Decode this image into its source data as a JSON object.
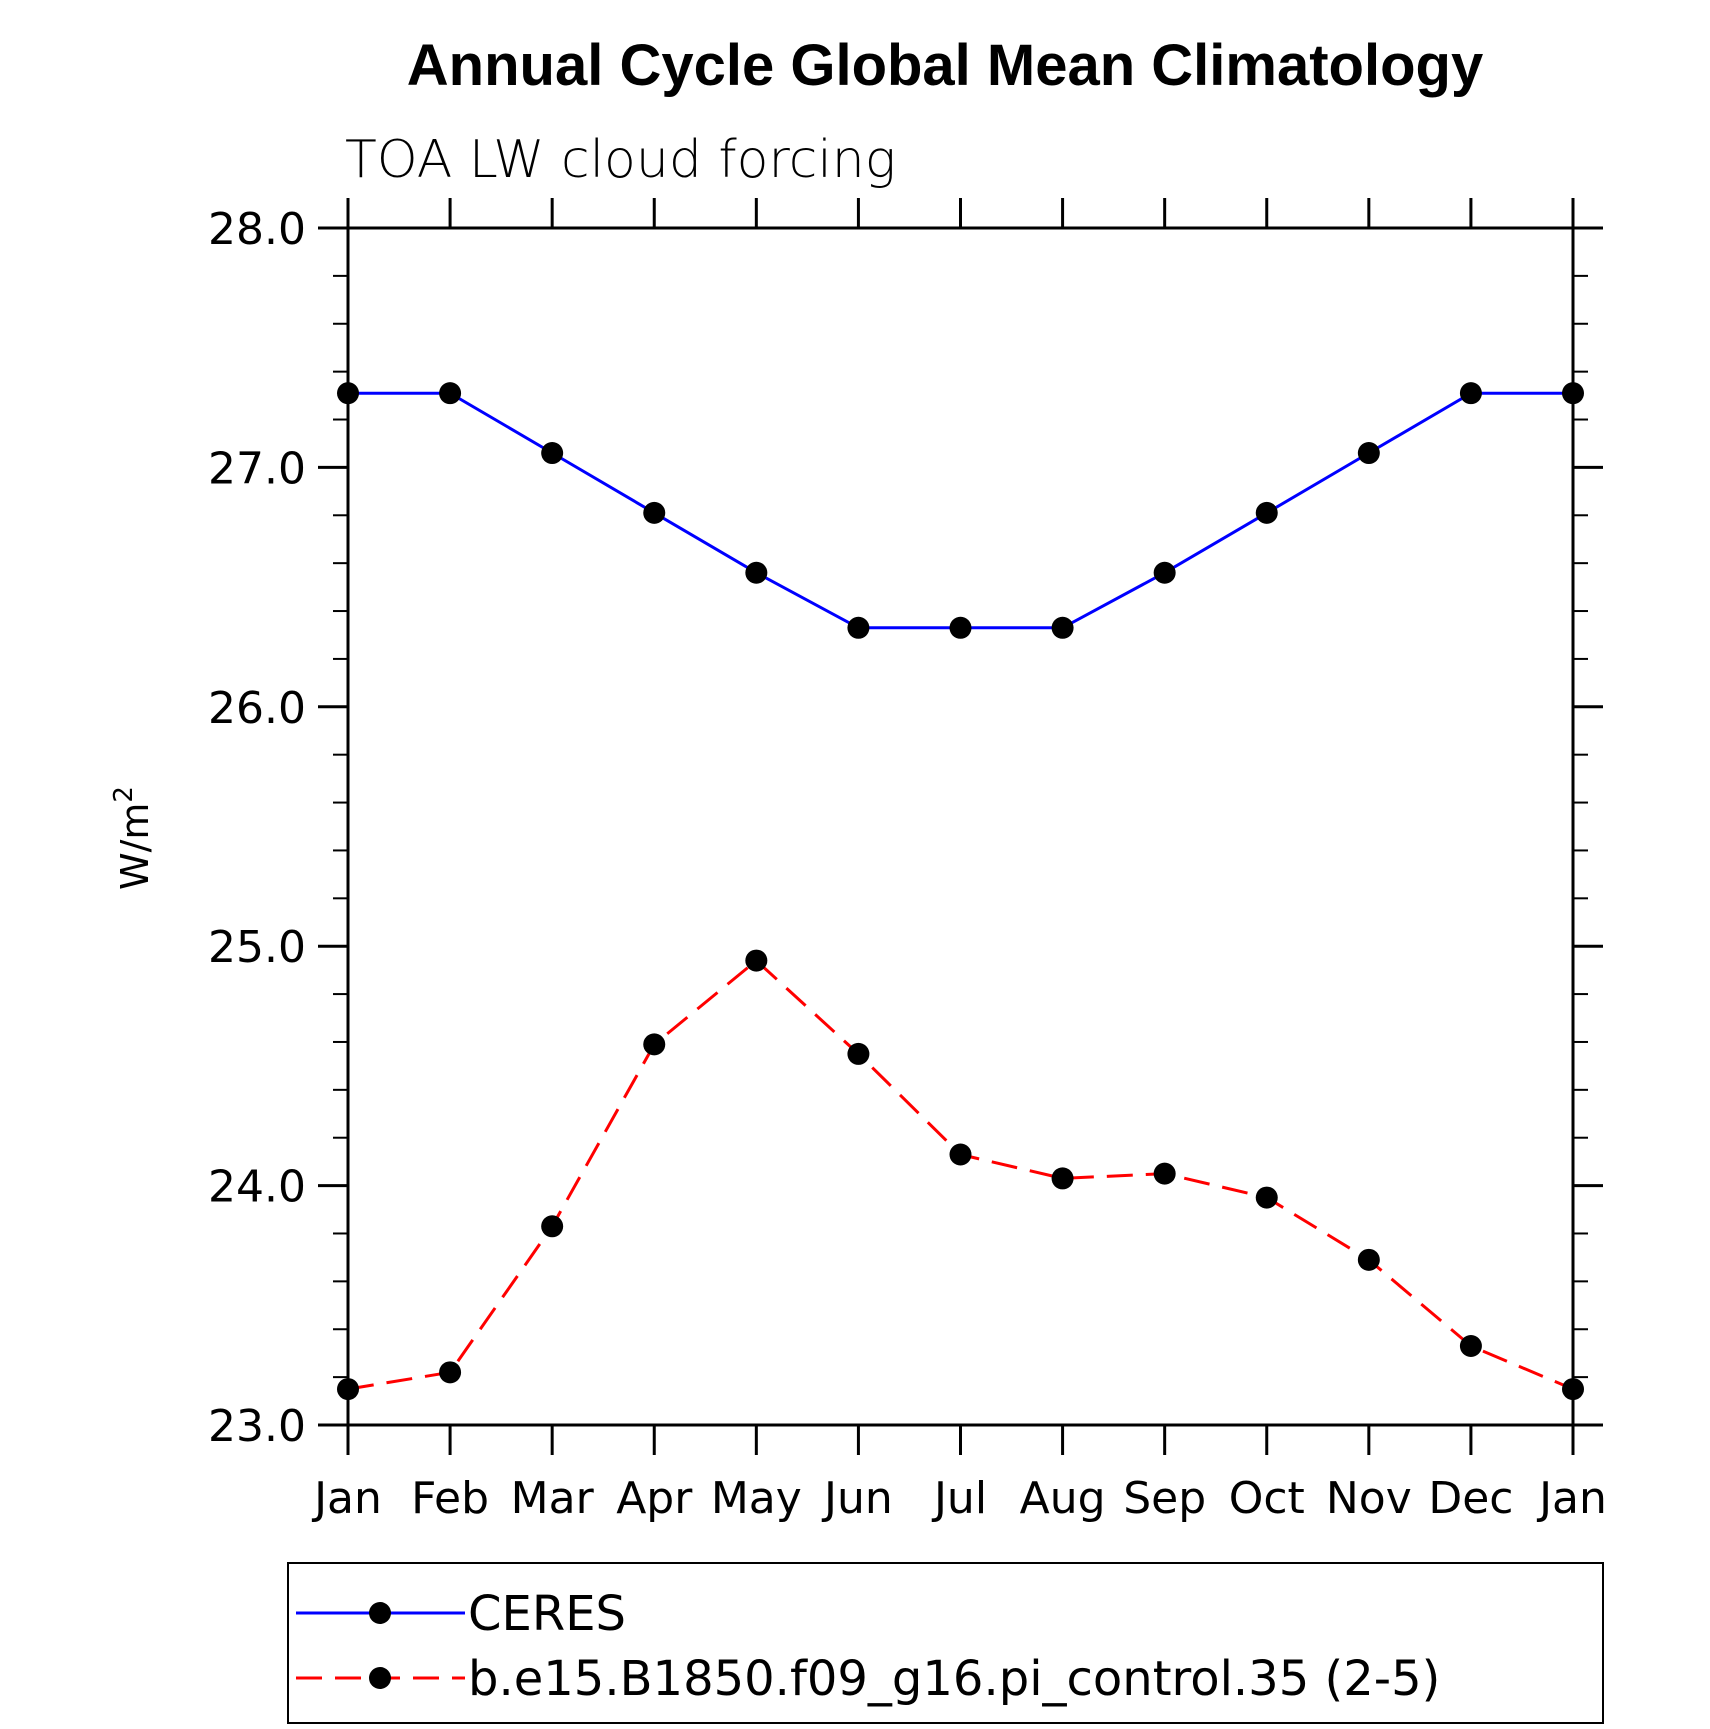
{
  "chart_data": {
    "type": "line",
    "title": "Annual Cycle Global Mean Climatology",
    "subtitle": "TOA LW cloud forcing",
    "ylabel": "W/m",
    "ylabel_sup": "2",
    "ylim": [
      23.0,
      28.0
    ],
    "yticks": [
      23.0,
      24.0,
      25.0,
      26.0,
      27.0,
      28.0
    ],
    "ytick_labels": [
      "23.0",
      "24.0",
      "25.0",
      "26.0",
      "27.0",
      "28.0"
    ],
    "categories": [
      "Jan",
      "Feb",
      "Mar",
      "Apr",
      "May",
      "Jun",
      "Jul",
      "Aug",
      "Sep",
      "Oct",
      "Nov",
      "Dec",
      "Jan"
    ],
    "series": [
      {
        "name": "CERES",
        "color": "#0000ff",
        "dash": "solid",
        "values": [
          27.31,
          27.31,
          27.06,
          26.81,
          26.56,
          26.33,
          26.33,
          26.33,
          26.56,
          26.81,
          27.06,
          27.31,
          27.31
        ]
      },
      {
        "name": "b.e15.B1850.f09_g16.pi_control.35 (2-5)",
        "color": "#ff0000",
        "dash": "dashed",
        "values": [
          23.15,
          23.22,
          23.83,
          24.59,
          24.94,
          24.55,
          24.13,
          24.03,
          24.05,
          23.95,
          23.69,
          23.33,
          23.15
        ]
      }
    ],
    "legend_position": "bottom"
  }
}
